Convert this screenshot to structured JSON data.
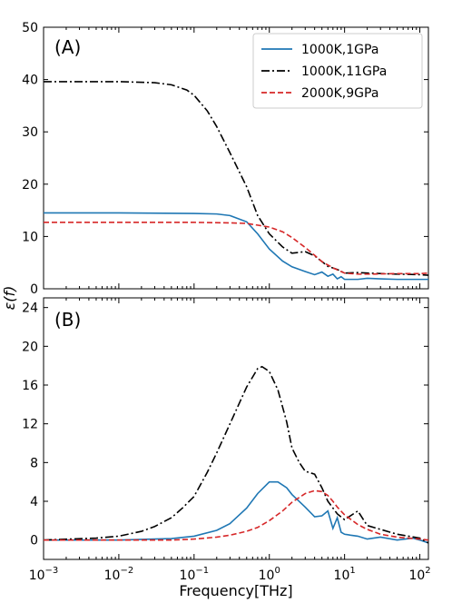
{
  "figure": {
    "ylabel": "ε(f)",
    "xlabel": "Frequency[THz]"
  },
  "colors": {
    "1000K,1GPa": "#1f77b4",
    "1000K,11GPa": "#000000",
    "2000K,9GPa": "#d62728"
  },
  "chart_data": [
    {
      "type": "line",
      "panel_label": "(A)",
      "xscale": "log",
      "xlim": [
        0.001,
        130
      ],
      "ylim": [
        0,
        50
      ],
      "yticks": [
        0,
        10,
        20,
        30,
        40,
        50
      ],
      "legend": {
        "placement": "top-right",
        "entries": [
          "1000K,1GPa",
          "1000K,11GPa",
          "2000K,9GPa"
        ]
      },
      "series": [
        {
          "name": "1000K,1GPa",
          "style": "solid",
          "x": [
            0.001,
            0.01,
            0.1,
            0.2,
            0.3,
            0.5,
            0.7,
            1.0,
            1.5,
            2,
            3,
            4,
            5,
            6,
            7,
            8,
            9,
            10,
            15,
            20,
            30,
            50,
            100,
            130
          ],
          "y": [
            14.5,
            14.5,
            14.4,
            14.3,
            14.0,
            12.8,
            10.5,
            7.6,
            5.3,
            4.2,
            3.3,
            2.7,
            3.2,
            2.4,
            2.8,
            1.9,
            2.3,
            1.8,
            1.8,
            2.0,
            1.9,
            1.8,
            1.8,
            1.8
          ]
        },
        {
          "name": "1000K,11GPa",
          "style": "dashdot",
          "x": [
            0.001,
            0.01,
            0.03,
            0.05,
            0.08,
            0.1,
            0.15,
            0.2,
            0.3,
            0.5,
            0.7,
            1.0,
            1.5,
            2,
            3,
            4,
            5,
            6,
            8,
            10,
            15,
            20,
            50,
            100,
            130
          ],
          "y": [
            39.6,
            39.6,
            39.4,
            39.0,
            38.0,
            37.0,
            34.0,
            31.0,
            26.0,
            19.5,
            14.0,
            10.5,
            8.0,
            6.8,
            7.1,
            6.3,
            5.2,
            4.3,
            3.7,
            3.0,
            3.1,
            3.0,
            2.8,
            2.7,
            2.6
          ]
        },
        {
          "name": "2000K,9GPa",
          "style": "dashed",
          "x": [
            0.001,
            0.01,
            0.1,
            0.3,
            0.5,
            1.0,
            1.5,
            2,
            3,
            4,
            5,
            7,
            10,
            15,
            20,
            50,
            100,
            130
          ],
          "y": [
            12.7,
            12.7,
            12.7,
            12.6,
            12.5,
            11.8,
            10.9,
            9.8,
            7.9,
            6.4,
            5.2,
            4.0,
            3.0,
            2.8,
            2.8,
            2.9,
            2.9,
            3.0
          ]
        }
      ]
    },
    {
      "type": "line",
      "panel_label": "(B)",
      "xscale": "log",
      "xlim": [
        0.001,
        130
      ],
      "ylim": [
        -2,
        25
      ],
      "yticks": [
        0,
        4,
        8,
        12,
        16,
        20,
        24
      ],
      "xticks": [
        "10^-3",
        "10^-2",
        "10^-1",
        "10^0",
        "10^1",
        "10^2"
      ],
      "series": [
        {
          "name": "1000K,1GPa",
          "style": "solid",
          "x": [
            0.001,
            0.01,
            0.03,
            0.05,
            0.1,
            0.2,
            0.3,
            0.5,
            0.7,
            1.0,
            1.3,
            1.7,
            2,
            3,
            4,
            5,
            6,
            7,
            8,
            9,
            10,
            12,
            15,
            20,
            30,
            50,
            80,
            100,
            130
          ],
          "y": [
            0.0,
            0.0,
            0.1,
            0.15,
            0.4,
            1.0,
            1.7,
            3.3,
            4.8,
            6.0,
            6.0,
            5.4,
            4.7,
            3.4,
            2.4,
            2.5,
            3.0,
            1.2,
            2.3,
            0.8,
            0.6,
            0.5,
            0.4,
            0.1,
            0.3,
            0.0,
            0.2,
            0.0,
            -0.3
          ]
        },
        {
          "name": "1000K,11GPa",
          "style": "dashdot",
          "x": [
            0.001,
            0.005,
            0.01,
            0.02,
            0.03,
            0.05,
            0.07,
            0.1,
            0.15,
            0.2,
            0.3,
            0.5,
            0.7,
            0.8,
            1.0,
            1.3,
            1.7,
            2,
            2.5,
            3,
            4,
            5,
            6,
            8,
            10,
            15,
            20,
            30,
            50,
            100,
            130
          ],
          "y": [
            0.0,
            0.2,
            0.4,
            0.9,
            1.4,
            2.3,
            3.3,
            4.5,
            7.0,
            9.0,
            12.0,
            15.8,
            17.7,
            17.9,
            17.4,
            15.5,
            12.2,
            9.5,
            8.0,
            7.1,
            6.8,
            5.4,
            4.0,
            2.7,
            2.1,
            3.0,
            1.5,
            1.1,
            0.6,
            0.2,
            -0.3
          ]
        },
        {
          "name": "2000K,9GPa",
          "style": "dashed",
          "x": [
            0.001,
            0.01,
            0.05,
            0.1,
            0.2,
            0.3,
            0.5,
            0.7,
            1.0,
            1.5,
            2,
            3,
            4,
            5,
            6,
            7,
            8,
            10,
            15,
            20,
            30,
            50,
            100,
            130
          ],
          "y": [
            0.0,
            0.0,
            0.0,
            0.1,
            0.3,
            0.5,
            0.9,
            1.3,
            2.0,
            3.0,
            3.9,
            4.8,
            5.1,
            5.0,
            4.6,
            4.0,
            3.4,
            2.6,
            1.6,
            1.1,
            0.6,
            0.3,
            0.1,
            0.0
          ]
        }
      ]
    }
  ]
}
